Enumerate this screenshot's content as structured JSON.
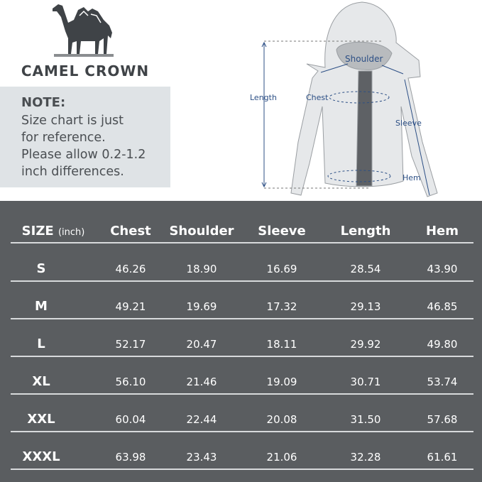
{
  "brand": {
    "name": "CAMEL CROWN",
    "logo_icon": "camel-icon"
  },
  "note": {
    "title": "NOTE:",
    "lines": [
      "Size chart is just",
      "for reference.",
      "Please allow 0.2-1.2",
      "inch differences."
    ]
  },
  "diagram": {
    "labels": {
      "length": "Length",
      "shoulder": "Shoulder",
      "chest": "Chest",
      "sleeve": "Sleeve",
      "hem": "Hem"
    },
    "accent_color": "#2c4f85"
  },
  "table": {
    "size_header": "SIZE",
    "unit": "(inch)",
    "columns": [
      "Chest",
      "Shoulder",
      "Sleeve",
      "Length",
      "Hem"
    ],
    "rows": [
      {
        "size": "S",
        "values": [
          "46.26",
          "18.90",
          "16.69",
          "28.54",
          "43.90"
        ]
      },
      {
        "size": "M",
        "values": [
          "49.21",
          "19.69",
          "17.32",
          "29.13",
          "46.85"
        ]
      },
      {
        "size": "L",
        "values": [
          "52.17",
          "20.47",
          "18.11",
          "29.92",
          "49.80"
        ]
      },
      {
        "size": "XL",
        "values": [
          "56.10",
          "21.46",
          "19.09",
          "30.71",
          "53.74"
        ]
      },
      {
        "size": "XXL",
        "values": [
          "60.04",
          "22.44",
          "20.08",
          "31.50",
          "57.68"
        ]
      },
      {
        "size": "XXXL",
        "values": [
          "63.98",
          "23.43",
          "21.06",
          "32.28",
          "61.61"
        ]
      }
    ],
    "background": "#5a5d60"
  }
}
